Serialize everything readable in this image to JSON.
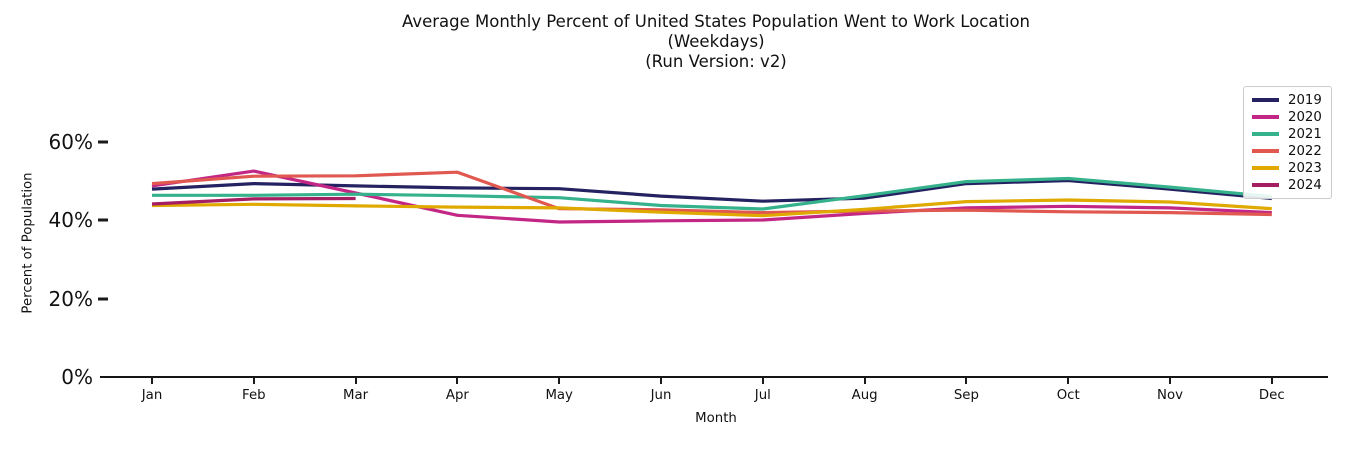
{
  "title": {
    "line1": "Average Monthly Percent of United States Population Went to Work Location",
    "line2": "(Weekdays)",
    "line3": "(Run Version: v2)"
  },
  "axes": {
    "x_label": "Month",
    "y_label": "Percent of Population",
    "y_tick_labels": [
      "0%",
      "20%",
      "40%",
      "60%"
    ],
    "y_tick_values": [
      0,
      20,
      40,
      60
    ]
  },
  "chart_data": {
    "type": "line",
    "title": "Average Monthly Percent of United States Population Went to Work Location (Weekdays) (Run Version: v2)",
    "xlabel": "Month",
    "ylabel": "Percent of Population",
    "categories": [
      "Jan",
      "Feb",
      "Mar",
      "Apr",
      "May",
      "Jun",
      "Jul",
      "Aug",
      "Sep",
      "Oct",
      "Nov",
      "Dec"
    ],
    "series": [
      {
        "name": "2019",
        "color": "#252262",
        "values": [
          48.0,
          49.4,
          48.8,
          48.3,
          48.1,
          46.2,
          44.9,
          45.7,
          49.4,
          50.2,
          48.0,
          45.6
        ]
      },
      {
        "name": "2020",
        "color": "#c32786",
        "values": [
          48.8,
          52.6,
          47.0,
          41.3,
          39.6,
          39.9,
          40.1,
          41.8,
          43.2,
          43.6,
          43.2,
          42.0
        ]
      },
      {
        "name": "2021",
        "color": "#35b28b",
        "values": [
          46.4,
          46.4,
          46.7,
          46.3,
          45.8,
          43.8,
          42.9,
          46.3,
          49.9,
          50.7,
          48.5,
          46.1
        ]
      },
      {
        "name": "2022",
        "color": "#e0584f",
        "values": [
          49.4,
          51.3,
          51.4,
          52.3,
          43.0,
          42.7,
          42.0,
          42.4,
          42.6,
          42.2,
          42.0,
          41.5
        ]
      },
      {
        "name": "2023",
        "color": "#dfa900",
        "values": [
          43.8,
          44.1,
          43.7,
          43.4,
          43.2,
          42.1,
          41.2,
          42.8,
          44.8,
          45.2,
          44.7,
          43.0
        ]
      },
      {
        "name": "2024",
        "color": "#a41e61",
        "values": [
          44.2,
          45.5,
          45.6,
          null,
          null,
          null,
          null,
          null,
          null,
          null,
          null,
          null
        ]
      }
    ],
    "ylim": [
      0,
      65
    ],
    "grid": false,
    "legend_position": "upper right",
    "legend_entries": [
      "2019",
      "2020",
      "2021",
      "2022",
      "2023",
      "2024"
    ]
  }
}
